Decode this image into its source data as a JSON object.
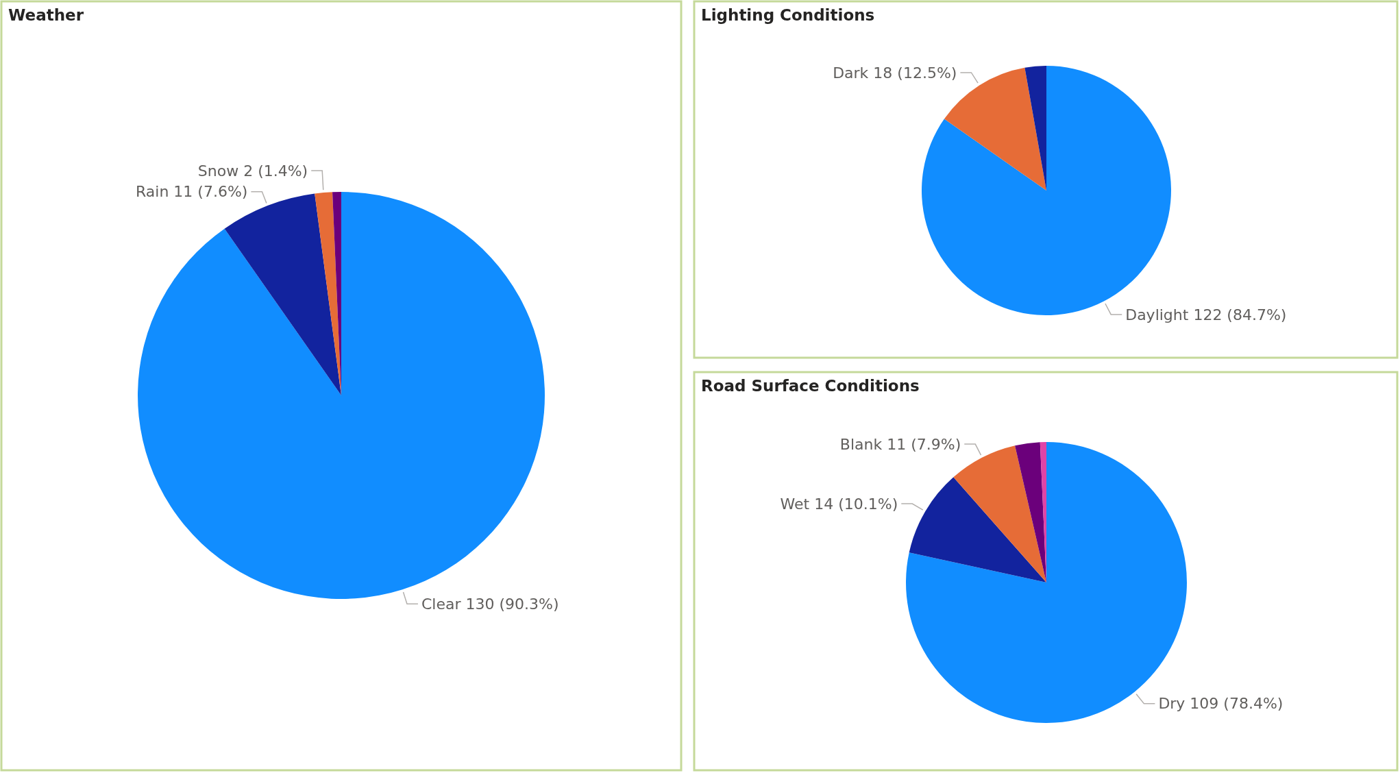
{
  "chart_data": [
    {
      "type": "pie",
      "title": "Weather",
      "categories": [
        "Clear",
        "Rain",
        "Snow",
        null
      ],
      "values": [
        130,
        11,
        2,
        1
      ],
      "colors": [
        "#118dff",
        "#12239e",
        "#e66c37",
        "#6b007b"
      ],
      "value_labels": [
        "130 (90.3%)",
        "11 (7.6%)",
        "2 (1.4%)",
        null
      ]
    },
    {
      "type": "pie",
      "title": "Lighting Conditions",
      "categories": [
        "Daylight",
        "Dark",
        null
      ],
      "values": [
        122,
        18,
        4
      ],
      "colors": [
        "#118dff",
        "#e66c37",
        "#12239e"
      ],
      "value_labels": [
        "122 (84.7%)",
        "18 (12.5%)",
        null
      ]
    },
    {
      "type": "pie",
      "title": "Road Surface Conditions",
      "categories": [
        "Dry",
        "Wet",
        "Blank",
        null,
        null
      ],
      "values": [
        109,
        14,
        11,
        4,
        1
      ],
      "colors": [
        "#118dff",
        "#12239e",
        "#e66c37",
        "#6b007b",
        "#e044a7"
      ],
      "value_labels": [
        "109 (78.4%)",
        "14 (10.1%)",
        "11 (7.9%)",
        null,
        null
      ]
    }
  ]
}
